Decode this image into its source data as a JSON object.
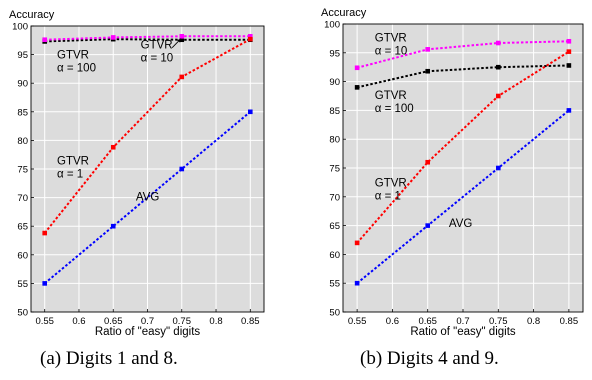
{
  "captions": [
    "(a)  Digits 1 and 8.",
    "(b)  Digits 4 and 9."
  ],
  "chart_data": [
    {
      "type": "line",
      "ylabel": "Accuracy",
      "xlabel": "Ratio of \"easy\" digits",
      "x": [
        0.55,
        0.65,
        0.75,
        0.85
      ],
      "xticks": [
        "0.55",
        "0.6",
        "0.65",
        "0.7",
        "0.75",
        "0.8",
        "0.85"
      ],
      "xtick_values": [
        0.55,
        0.6,
        0.65,
        0.7,
        0.75,
        0.8,
        0.85
      ],
      "yticks": [
        "50",
        "55",
        "60",
        "65",
        "70",
        "75",
        "80",
        "85",
        "90",
        "95",
        "100"
      ],
      "xlim": [
        0.53,
        0.87
      ],
      "ylim": [
        50,
        100
      ],
      "grid": true,
      "series": [
        {
          "name": "GTVR α = 100",
          "color": "#000000",
          "values": [
            97.3,
            97.7,
            97.6,
            97.6
          ]
        },
        {
          "name": "GTVR α = 10",
          "color": "#ff00ff",
          "values": [
            97.6,
            98.0,
            98.2,
            98.2
          ]
        },
        {
          "name": "GTVR α = 1",
          "color": "#ff0000",
          "values": [
            63.8,
            78.8,
            91.1,
            97.7
          ]
        },
        {
          "name": "AVG",
          "color": "#0000ff",
          "values": [
            55.0,
            65.0,
            75.0,
            85.0
          ]
        }
      ],
      "annotations": [
        {
          "lines": [
            "GTVR",
            "α = 100"
          ],
          "x": 0.568,
          "y": 94.3
        },
        {
          "lines": [
            "GTVR",
            "α = 10"
          ],
          "x": 0.69,
          "y": 96.1
        },
        {
          "lines": [
            "GTVR",
            "α = 1"
          ],
          "x": 0.568,
          "y": 75.8
        },
        {
          "lines": [
            "AVG"
          ],
          "x": 0.683,
          "y": 69.5
        }
      ]
    },
    {
      "type": "line",
      "ylabel": "Accuracy",
      "xlabel": "Ratio of \"easy\" digits",
      "x": [
        0.55,
        0.65,
        0.75,
        0.85
      ],
      "xticks": [
        "0.55",
        "0.6",
        "0.65",
        "0.7",
        "0.75",
        "0.8",
        "0.85"
      ],
      "xtick_values": [
        0.55,
        0.6,
        0.65,
        0.7,
        0.75,
        0.8,
        0.85
      ],
      "yticks": [
        "50",
        "55",
        "60",
        "65",
        "70",
        "75",
        "80",
        "85",
        "90",
        "95",
        "100"
      ],
      "xlim": [
        0.53,
        0.87
      ],
      "ylim": [
        50,
        100
      ],
      "grid": true,
      "series": [
        {
          "name": "GTVR α = 10",
          "color": "#ff00ff",
          "values": [
            92.4,
            95.6,
            96.7,
            97.0
          ]
        },
        {
          "name": "GTVR α = 100",
          "color": "#000000",
          "values": [
            89.0,
            91.8,
            92.5,
            92.8
          ]
        },
        {
          "name": "GTVR α = 1",
          "color": "#ff0000",
          "values": [
            62.0,
            76.0,
            87.5,
            95.2
          ]
        },
        {
          "name": "AVG",
          "color": "#0000ff",
          "values": [
            55.0,
            65.0,
            75.0,
            85.0
          ]
        }
      ],
      "annotations": [
        {
          "lines": [
            "GTVR",
            "α = 10"
          ],
          "x": 0.575,
          "y": 97.0
        },
        {
          "lines": [
            "GTVR",
            "α = 100"
          ],
          "x": 0.575,
          "y": 87.0
        },
        {
          "lines": [
            "GTVR",
            "α = 1"
          ],
          "x": 0.575,
          "y": 71.8
        },
        {
          "lines": [
            "AVG"
          ],
          "x": 0.68,
          "y": 64.8
        }
      ]
    }
  ]
}
